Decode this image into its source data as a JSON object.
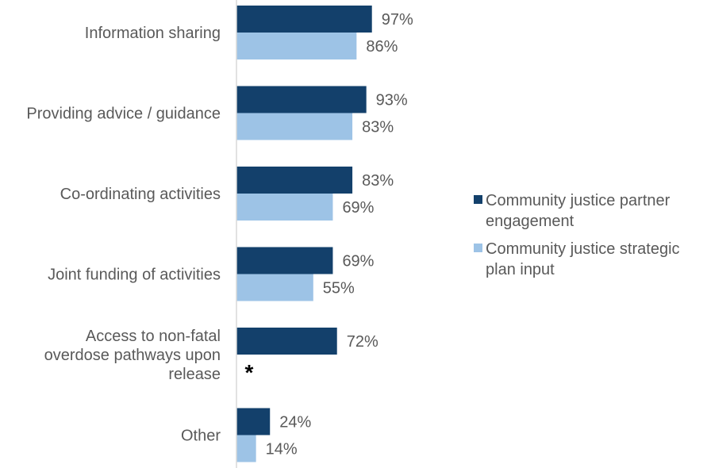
{
  "chart_data": {
    "type": "bar",
    "orientation": "horizontal",
    "categories": [
      [
        "Information sharing"
      ],
      [
        "Providing advice / guidance"
      ],
      [
        "Co-ordinating activities"
      ],
      [
        "Joint funding of activities"
      ],
      [
        "Access to non-fatal",
        "overdose pathways upon",
        "release"
      ],
      [
        "Other"
      ]
    ],
    "series": [
      {
        "name": [
          "Community justice partner",
          "engagement"
        ],
        "color": "#13406B",
        "values": [
          97,
          93,
          83,
          69,
          72,
          24
        ],
        "labels": [
          "97%",
          "93%",
          "83%",
          "69%",
          "72%",
          "24%"
        ]
      },
      {
        "name": [
          "Community justice strategic",
          "plan input"
        ],
        "color": "#9DC3E6",
        "values": [
          86,
          83,
          69,
          55,
          null,
          14
        ],
        "labels": [
          "86%",
          "83%",
          "69%",
          "55%",
          null,
          "14%"
        ]
      }
    ],
    "missing_marker": "*",
    "xlim": [
      0,
      100
    ],
    "grid": false,
    "legend_position": "right"
  }
}
